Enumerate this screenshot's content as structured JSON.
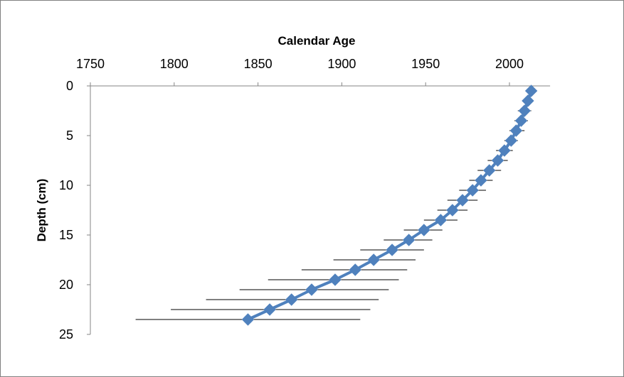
{
  "chart_data": {
    "type": "scatter",
    "title": "",
    "xlabel": "Calendar Age",
    "ylabel": "Depth (cm)",
    "x_axis_position": "top",
    "y_axis_inverted": true,
    "xlim": [
      1750,
      2020
    ],
    "ylim": [
      0,
      25
    ],
    "x_ticks": [
      1750,
      1800,
      1850,
      1900,
      1950,
      2000
    ],
    "y_ticks": [
      0,
      5,
      10,
      15,
      20,
      25
    ],
    "grid": false,
    "legend": "none",
    "series": [
      {
        "color": "#4F81BD",
        "marker": "diamond",
        "line": true,
        "error_bars": "horizontal",
        "error_bar_color": "#000000",
        "points": [
          {
            "depth": 0.5,
            "age": 2013,
            "age_min": 2011,
            "age_max": 2015
          },
          {
            "depth": 1.5,
            "age": 2011,
            "age_min": 2008,
            "age_max": 2014
          },
          {
            "depth": 2.5,
            "age": 2009,
            "age_min": 2005,
            "age_max": 2013
          },
          {
            "depth": 3.5,
            "age": 2007,
            "age_min": 2003,
            "age_max": 2011
          },
          {
            "depth": 4.5,
            "age": 2004,
            "age_min": 2000,
            "age_max": 2009
          },
          {
            "depth": 5.5,
            "age": 2001,
            "age_min": 1997,
            "age_max": 2005
          },
          {
            "depth": 6.5,
            "age": 1997,
            "age_min": 1992,
            "age_max": 2002
          },
          {
            "depth": 7.5,
            "age": 1993,
            "age_min": 1987,
            "age_max": 1999
          },
          {
            "depth": 8.5,
            "age": 1988,
            "age_min": 1981,
            "age_max": 1995
          },
          {
            "depth": 9.5,
            "age": 1983,
            "age_min": 1976,
            "age_max": 1990
          },
          {
            "depth": 10.5,
            "age": 1978,
            "age_min": 1970,
            "age_max": 1986
          },
          {
            "depth": 11.5,
            "age": 1972,
            "age_min": 1963,
            "age_max": 1981
          },
          {
            "depth": 12.5,
            "age": 1966,
            "age_min": 1957,
            "age_max": 1975
          },
          {
            "depth": 13.5,
            "age": 1959,
            "age_min": 1949,
            "age_max": 1969
          },
          {
            "depth": 14.5,
            "age": 1949,
            "age_min": 1937,
            "age_max": 1960
          },
          {
            "depth": 15.5,
            "age": 1940,
            "age_min": 1925,
            "age_max": 1954
          },
          {
            "depth": 16.5,
            "age": 1930,
            "age_min": 1911,
            "age_max": 1949
          },
          {
            "depth": 17.5,
            "age": 1919,
            "age_min": 1895,
            "age_max": 1944
          },
          {
            "depth": 18.5,
            "age": 1908,
            "age_min": 1876,
            "age_max": 1939
          },
          {
            "depth": 19.5,
            "age": 1896,
            "age_min": 1856,
            "age_max": 1934
          },
          {
            "depth": 20.5,
            "age": 1882,
            "age_min": 1839,
            "age_max": 1928
          },
          {
            "depth": 21.5,
            "age": 1870,
            "age_min": 1819,
            "age_max": 1922
          },
          {
            "depth": 22.5,
            "age": 1857,
            "age_min": 1798,
            "age_max": 1917
          },
          {
            "depth": 23.5,
            "age": 1844,
            "age_min": 1777,
            "age_max": 1911
          }
        ]
      }
    ]
  }
}
